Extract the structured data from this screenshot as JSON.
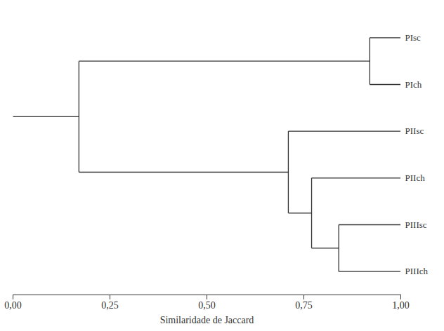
{
  "chart_data": {
    "type": "dendrogram",
    "x_label": "Similaridade de Jaccard",
    "leaves": [
      "PIsc",
      "PIch",
      "PIIsc",
      "PIIch",
      "PIIIsc",
      "PIIIch"
    ],
    "merges": [
      {
        "children": [
          0,
          1
        ],
        "similarity": 0.92
      },
      {
        "children": [
          4,
          5
        ],
        "similarity": 0.84
      },
      {
        "children": [
          3,
          7
        ],
        "similarity": 0.77
      },
      {
        "children": [
          2,
          8
        ],
        "similarity": 0.71
      },
      {
        "children": [
          6,
          9
        ],
        "similarity": 0.17
      }
    ],
    "xlim": [
      0,
      1
    ],
    "xticks": [
      {
        "value": 0,
        "label": "0,00"
      },
      {
        "value": 0.25,
        "label": "0,25"
      },
      {
        "value": 0.5,
        "label": "0,50"
      },
      {
        "value": 0.75,
        "label": "0,75"
      },
      {
        "value": 1,
        "label": "1,00"
      }
    ],
    "color": "#333333"
  }
}
